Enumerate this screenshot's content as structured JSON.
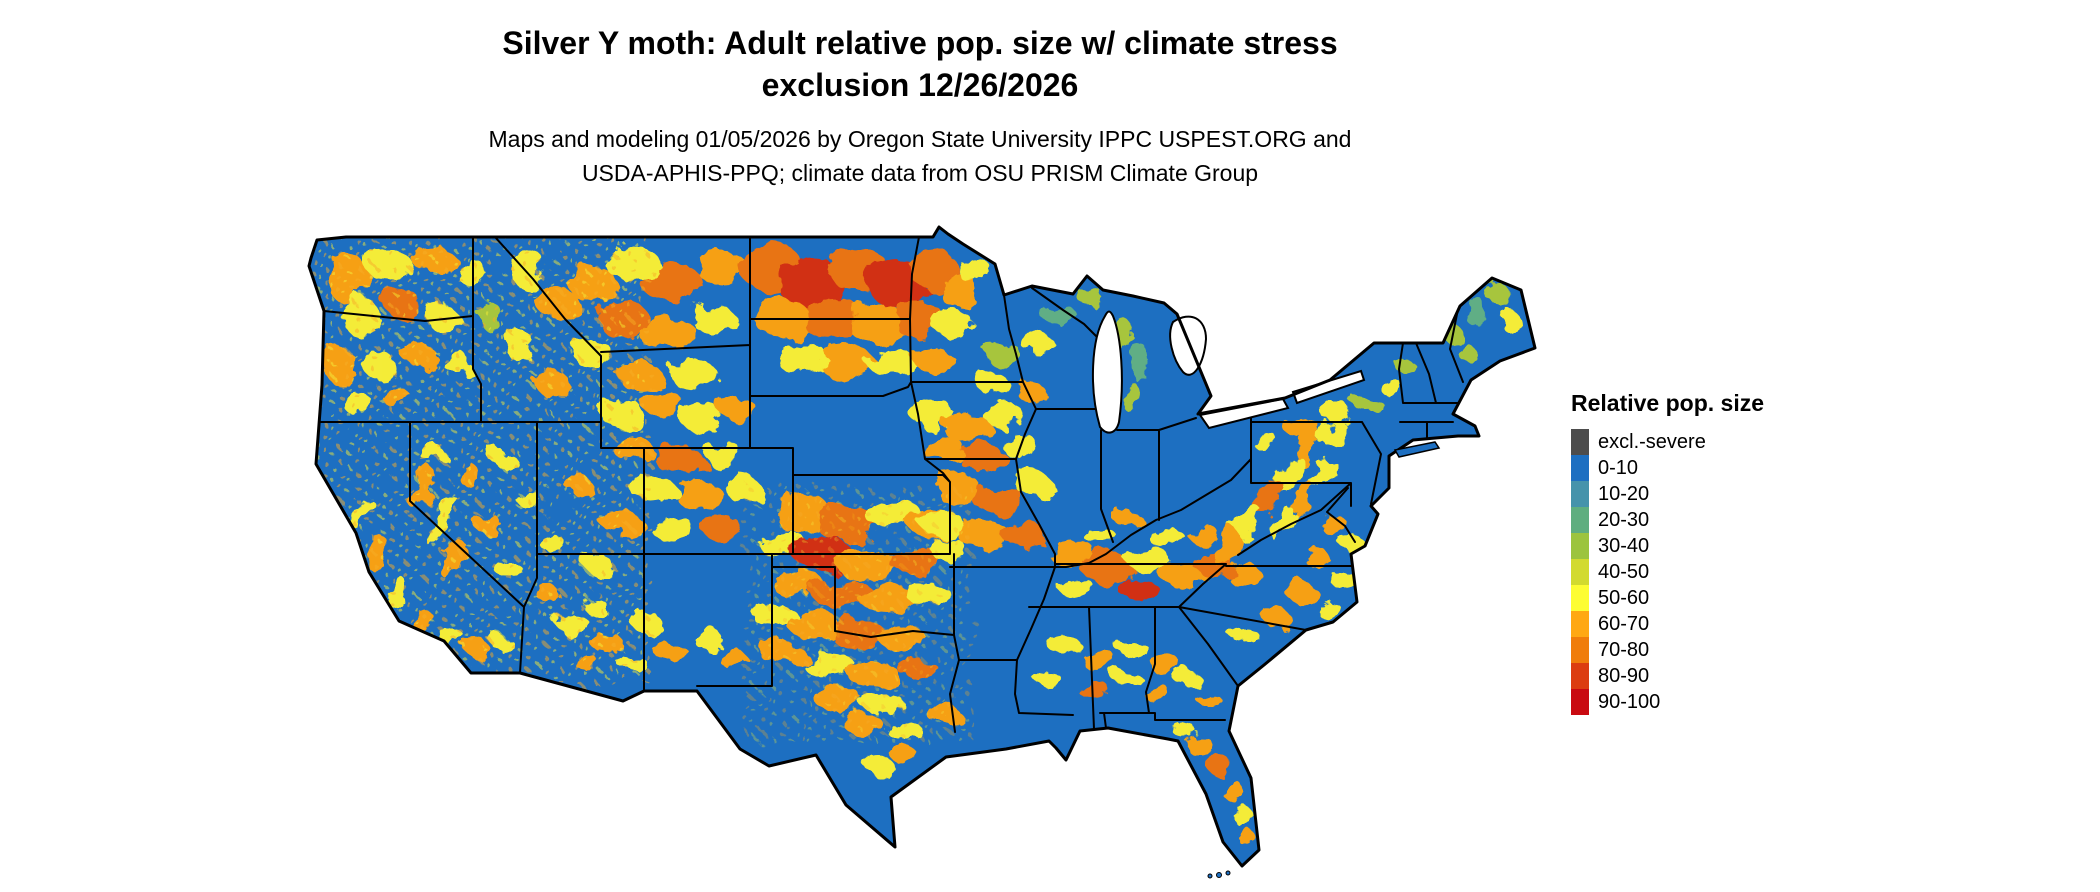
{
  "title": {
    "line1": "Silver Y moth: Adult relative pop. size w/ climate stress",
    "line2": "exclusion 12/26/2026"
  },
  "subtitle": {
    "line1": "Maps and modeling 01/05/2026 by Oregon State University IPPC USPEST.ORG and",
    "line2": "USDA-APHIS-PPQ; climate data from OSU PRISM Climate Group"
  },
  "map": {
    "region": "Continental United States",
    "kind": "raster map of relative adult population size with state boundaries",
    "base_color": "#1d6fc1"
  },
  "legend": {
    "title": "Relative pop. size",
    "items": [
      {
        "label": "excl.-severe",
        "color": "#4d4d4d"
      },
      {
        "label": "0-10",
        "color": "#1d6fc1"
      },
      {
        "label": "10-20",
        "color": "#4593ab"
      },
      {
        "label": "20-30",
        "color": "#5fae7f"
      },
      {
        "label": "30-40",
        "color": "#9cc43e"
      },
      {
        "label": "40-50",
        "color": "#d2da2f"
      },
      {
        "label": "50-60",
        "color": "#fdfd33"
      },
      {
        "label": "60-70",
        "color": "#ffa813"
      },
      {
        "label": "70-80",
        "color": "#f07d0b"
      },
      {
        "label": "80-90",
        "color": "#dc3d10"
      },
      {
        "label": "90-100",
        "color": "#c90a11"
      }
    ]
  }
}
